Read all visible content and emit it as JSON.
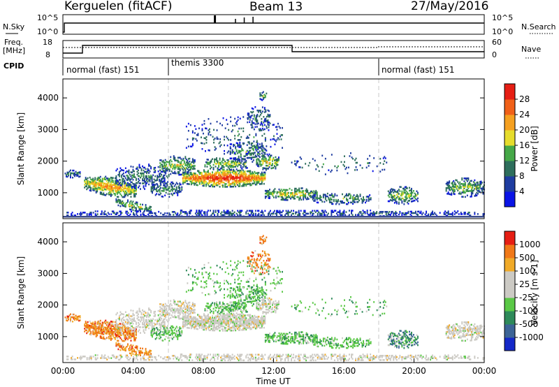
{
  "header": {
    "station": "Kerguelen (fitACF)",
    "beam": "Beam 13",
    "date": "27/May/2016"
  },
  "strip_labels": {
    "nsky": "N.Sky",
    "nsky_ticks": [
      "10^5",
      "10^0"
    ],
    "nsearch": "N.Search",
    "nsearch_ticks": [
      "10^5",
      "10^0"
    ],
    "freq": "Freq.",
    "freq_unit": "[MHz]",
    "freq_ticks": [
      "18",
      "8"
    ],
    "nave": "Nave",
    "nave_ticks": [
      "60",
      "0"
    ],
    "cpid": "CPID"
  },
  "cpid_modes": [
    {
      "label": "normal (fast) 151",
      "start_h": 0,
      "end_h": 6
    },
    {
      "label": "themis 3300",
      "start_h": 6,
      "end_h": 18
    },
    {
      "label": "normal (fast) 151",
      "start_h": 18,
      "end_h": 24
    }
  ],
  "chart_data": [
    {
      "type": "heatmap",
      "name": "power",
      "ylabel": "Slant Range [km]",
      "xlim": [
        0,
        24
      ],
      "ylim": [
        180,
        4600
      ],
      "yticks": [
        "1000",
        "2000",
        "3000",
        "4000"
      ],
      "colorbar_label": "Power [dB]",
      "colorbar_ticks": [
        "28",
        "24",
        "20",
        "16",
        "12",
        "8",
        "4"
      ],
      "colorbar_colors": [
        "#0a14e6",
        "#1e3ca0",
        "#2e6e5c",
        "#46a848",
        "#e6dc2c",
        "#f5a020",
        "#f06018",
        "#e61e14"
      ]
    },
    {
      "type": "heatmap",
      "name": "velocity",
      "ylabel": "Slant Range [km]",
      "xlabel": "Time UT",
      "xlim": [
        0,
        24
      ],
      "ylim": [
        180,
        4600
      ],
      "yticks": [
        "1000",
        "2000",
        "3000",
        "4000"
      ],
      "xticks": [
        "00:00",
        "04:00",
        "08:00",
        "12:00",
        "16:00",
        "20:00",
        "00:00"
      ],
      "colorbar_label": "Velocity [m s-1]",
      "colorbar_ticks": [
        "1000",
        "500",
        "100",
        "25",
        "-25",
        "-100",
        "-500",
        "-1000"
      ],
      "colorbar_colors": [
        "#1428c8",
        "#3c6496",
        "#2e8a5a",
        "#5ac846",
        "#cccac4",
        "#cccac4",
        "#f0aa28",
        "#f07818",
        "#e61e14"
      ]
    }
  ]
}
